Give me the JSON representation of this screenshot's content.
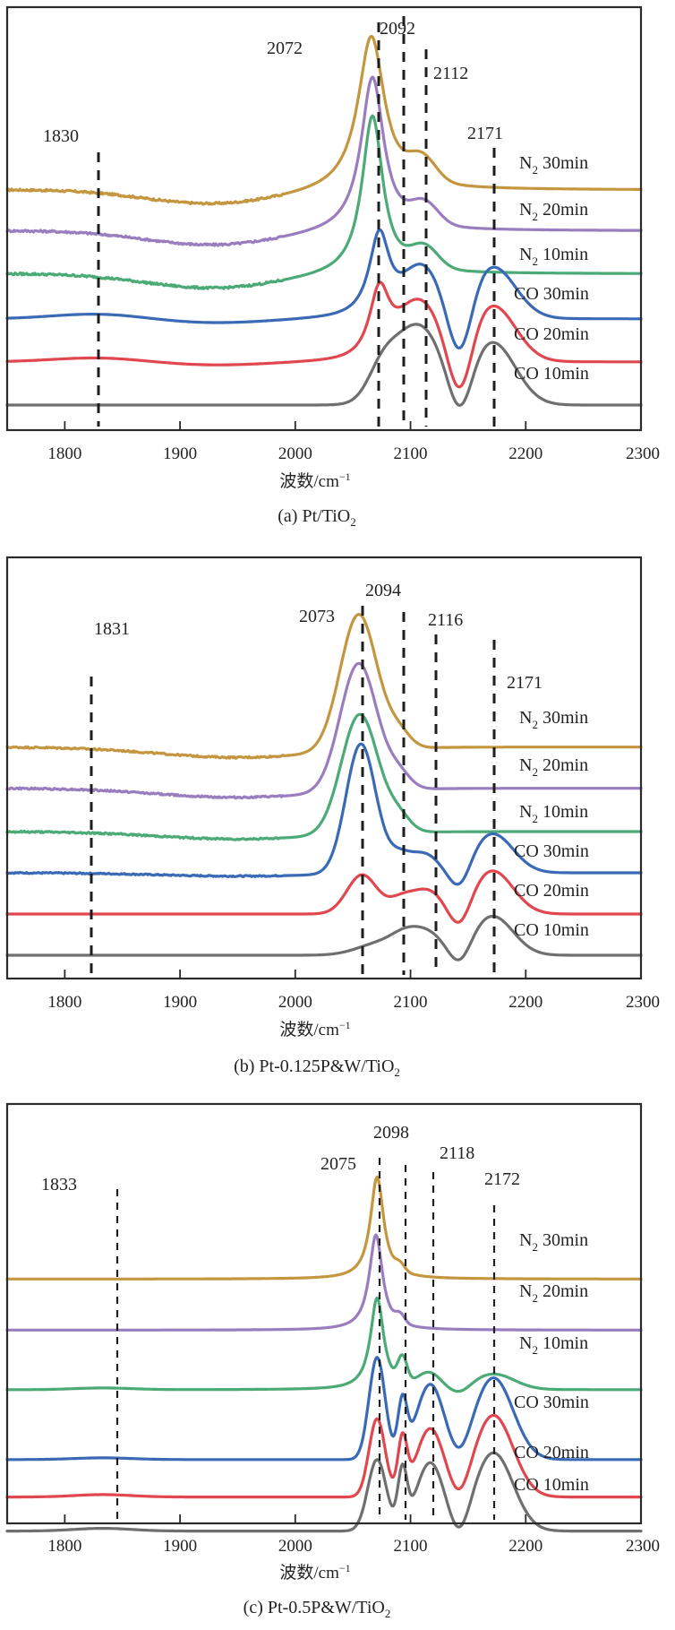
{
  "colors": {
    "N2 30min": "#C4963F",
    "N2 20min": "#9A7DBF",
    "N2 10min": "#4BAA76",
    "CO 30min": "#3A6AB5",
    "CO 20min": "#E0474F",
    "CO 10min": "#6F6F6F",
    "guide": "#1e1e1e"
  },
  "chart_data": [
    {
      "type": "line",
      "panel": "a",
      "title": "",
      "caption": "(a) Pt/TiO",
      "caption_sub": "2",
      "xlabel": "波数/cm",
      "xlabel_sup": "−1",
      "ylabel": "",
      "xlim": [
        1750,
        2300
      ],
      "x_ticks": [
        1800,
        1900,
        2000,
        2100,
        2200,
        2300
      ],
      "x_tick_labels": [
        "1800",
        "1900",
        "2000",
        "2100",
        "2200",
        "2300"
      ],
      "reference_lines": [
        {
          "x": 1830,
          "label": "1830"
        },
        {
          "x": 2072,
          "label": "2072"
        },
        {
          "x": 2092,
          "label": "2092"
        },
        {
          "x": 2112,
          "label": "2112"
        },
        {
          "x": 2171,
          "label": "2171"
        }
      ],
      "series": [
        {
          "name": "N2 30min",
          "label_main": "N",
          "label_sub": "2",
          "label_rest": " 30min",
          "offset": 5.0,
          "components": [
            [
              2066,
              3.6,
              14,
              "lorentz"
            ],
            [
              2110,
              0.55,
              12,
              "gauss"
            ],
            [
              1930,
              -0.35,
              60,
              "gauss"
            ]
          ],
          "noise": 0.06
        },
        {
          "name": "N2 20min",
          "label_main": "N",
          "label_sub": "2",
          "label_rest": " 20min",
          "offset": 4.05,
          "components": [
            [
              2067,
              3.6,
              12,
              "lorentz"
            ],
            [
              2112,
              0.5,
              12,
              "gauss"
            ],
            [
              1930,
              -0.35,
              60,
              "gauss"
            ]
          ],
          "noise": 0.06
        },
        {
          "name": "N2 10min",
          "label_main": "N",
          "label_sub": "2",
          "label_rest": " 10min",
          "offset": 3.05,
          "components": [
            [
              2067,
              3.7,
              11,
              "lorentz"
            ],
            [
              2112,
              0.5,
              12,
              "gauss"
            ],
            [
              1930,
              -0.35,
              60,
              "gauss"
            ]
          ],
          "noise": 0.06
        },
        {
          "name": "CO 30min",
          "label_main": "CO 30min",
          "label_sub": "",
          "label_rest": "",
          "offset": 2.0,
          "components": [
            [
              2073,
              2.0,
              11,
              "lorentz"
            ],
            [
              2110,
              1.1,
              16,
              "gauss"
            ],
            [
              2143,
              -1.3,
              10,
              "gauss"
            ],
            [
              2171,
              1.2,
              20,
              "gauss"
            ],
            [
              1830,
              0.12,
              40,
              "gauss"
            ],
            [
              1930,
              -0.1,
              50,
              "gauss"
            ]
          ],
          "noise": 0.0
        },
        {
          "name": "CO 20min",
          "label_main": "CO 20min",
          "label_sub": "",
          "label_rest": "",
          "offset": 1.0,
          "components": [
            [
              2073,
              1.65,
              11,
              "lorentz"
            ],
            [
              2108,
              1.3,
              18,
              "gauss"
            ],
            [
              2143,
              -1.3,
              10,
              "gauss"
            ],
            [
              2171,
              1.3,
              20,
              "gauss"
            ],
            [
              1830,
              0.1,
              40,
              "gauss"
            ],
            [
              1930,
              -0.08,
              50,
              "gauss"
            ]
          ],
          "noise": 0.0
        },
        {
          "name": "CO 10min",
          "label_main": "CO 10min",
          "label_sub": "",
          "label_rest": "",
          "offset": 0.0,
          "components": [
            [
              2075,
              0.55,
              12,
              "gauss"
            ],
            [
              2106,
              1.85,
              22,
              "gauss"
            ],
            [
              2143,
              -1.0,
              10,
              "gauss"
            ],
            [
              2171,
              1.45,
              20,
              "gauss"
            ]
          ],
          "noise": 0.0
        }
      ]
    },
    {
      "type": "line",
      "panel": "b",
      "title": "",
      "caption": "(b) Pt-0.125P&W/TiO",
      "caption_sub": "2",
      "xlabel": "波数/cm",
      "xlabel_sup": "−1",
      "ylabel": "",
      "xlim": [
        1750,
        2300
      ],
      "x_ticks": [
        1800,
        1900,
        2000,
        2100,
        2200,
        2300
      ],
      "x_tick_labels": [
        "1800",
        "1900",
        "2000",
        "2100",
        "2200",
        "2300"
      ],
      "reference_lines": [
        {
          "x": 1831,
          "label": "1831"
        },
        {
          "x": 2073,
          "label": "2073"
        },
        {
          "x": 2094,
          "label": "2094"
        },
        {
          "x": 2116,
          "label": "2116"
        },
        {
          "x": 2171,
          "label": "2171"
        }
      ],
      "series": [
        {
          "name": "N2 30min",
          "label_main": "N",
          "label_sub": "2",
          "label_rest": " 30min",
          "offset": 5.05,
          "components": [
            [
              2055,
              3.3,
              16,
              "gauss"
            ],
            [
              2090,
              0.35,
              10,
              "gauss"
            ],
            [
              1950,
              -0.25,
              70,
              "gauss"
            ]
          ],
          "noise": 0.05
        },
        {
          "name": "N2 20min",
          "label_main": "N",
          "label_sub": "2",
          "label_rest": " 20min",
          "offset": 4.05,
          "components": [
            [
              2055,
              3.1,
              16,
              "gauss"
            ],
            [
              2090,
              0.35,
              10,
              "gauss"
            ],
            [
              1950,
              -0.22,
              70,
              "gauss"
            ]
          ],
          "noise": 0.05
        },
        {
          "name": "N2 10min",
          "label_main": "N",
          "label_sub": "2",
          "label_rest": " 10min",
          "offset": 3.0,
          "components": [
            [
              2056,
              2.9,
              16,
              "gauss"
            ],
            [
              2090,
              0.35,
              10,
              "gauss"
            ],
            [
              1950,
              -0.18,
              70,
              "gauss"
            ]
          ],
          "noise": 0.05
        },
        {
          "name": "CO 30min",
          "label_main": "CO 30min",
          "label_sub": "",
          "label_rest": "",
          "offset": 2.0,
          "components": [
            [
              2057,
              3.15,
              13,
              "gauss"
            ],
            [
              2090,
              0.4,
              10,
              "gauss"
            ],
            [
              2112,
              0.45,
              12,
              "gauss"
            ],
            [
              2143,
              -0.55,
              9,
              "gauss"
            ],
            [
              2171,
              0.95,
              18,
              "gauss"
            ],
            [
              1950,
              -0.08,
              70,
              "gauss"
            ]
          ],
          "noise": 0.04
        },
        {
          "name": "CO 20min",
          "label_main": "CO 20min",
          "label_sub": "",
          "label_rest": "",
          "offset": 1.0,
          "components": [
            [
              2058,
              0.95,
              13,
              "gauss"
            ],
            [
              2092,
              0.35,
              11,
              "gauss"
            ],
            [
              2115,
              0.55,
              13,
              "gauss"
            ],
            [
              2143,
              -0.55,
              9,
              "gauss"
            ],
            [
              2171,
              1.05,
              18,
              "gauss"
            ]
          ],
          "noise": 0.0
        },
        {
          "name": "CO 10min",
          "label_main": "CO 10min",
          "label_sub": "",
          "label_rest": "",
          "offset": 0.0,
          "components": [
            [
              2075,
              0.3,
              20,
              "gauss"
            ],
            [
              2115,
              0.5,
              14,
              "gauss"
            ],
            [
              2095,
              0.3,
              12,
              "gauss"
            ],
            [
              2143,
              -0.45,
              9,
              "gauss"
            ],
            [
              2171,
              0.95,
              18,
              "gauss"
            ]
          ],
          "noise": 0.0
        }
      ]
    },
    {
      "type": "line",
      "panel": "c",
      "title": "",
      "caption": "(c) Pt-0.5P&W/TiO",
      "caption_sub": "2",
      "xlabel": "波数/cm",
      "xlabel_sup": "−1",
      "ylabel": "",
      "xlim": [
        1750,
        2300
      ],
      "x_ticks": [
        1800,
        1900,
        2000,
        2100,
        2200,
        2300
      ],
      "x_tick_labels": [
        "1800",
        "1900",
        "2000",
        "2100",
        "2200",
        "2300"
      ],
      "reference_lines": [
        {
          "x": 1833,
          "label": "1833"
        },
        {
          "x": 2075,
          "label": "2075"
        },
        {
          "x": 2098,
          "label": "2098"
        },
        {
          "x": 2118,
          "label": "2118"
        },
        {
          "x": 2172,
          "label": "2172"
        }
      ],
      "series": [
        {
          "name": "N2 30min",
          "label_main": "N",
          "label_sub": "2",
          "label_rest": " 30min",
          "offset": 6.7,
          "components": [
            [
              2071,
              3.0,
              7,
              "lorentz"
            ],
            [
              2091,
              0.2,
              4,
              "gauss"
            ]
          ],
          "noise": 0.0
        },
        {
          "name": "N2 20min",
          "label_main": "N",
          "label_sub": "2",
          "label_rest": " 20min",
          "offset": 5.2,
          "components": [
            [
              2070,
              2.8,
              7,
              "lorentz"
            ],
            [
              2091,
              0.25,
              4,
              "gauss"
            ]
          ],
          "noise": 0.0
        },
        {
          "name": "N2 10min",
          "label_main": "N",
          "label_sub": "2",
          "label_rest": " 10min",
          "offset": 3.45,
          "components": [
            [
              2071,
              2.7,
              7,
              "lorentz"
            ],
            [
              2093,
              0.75,
              4,
              "gauss"
            ],
            [
              2116,
              0.45,
              10,
              "gauss"
            ],
            [
              2143,
              -0.2,
              9,
              "gauss"
            ],
            [
              2172,
              0.45,
              18,
              "gauss"
            ],
            [
              1833,
              0.05,
              25,
              "gauss"
            ]
          ],
          "noise": 0.0
        },
        {
          "name": "CO 30min",
          "label_main": "CO 30min",
          "label_sub": "",
          "label_rest": "",
          "offset": 1.4,
          "components": [
            [
              2071,
              3.0,
              7,
              "gauss"
            ],
            [
              2093,
              1.6,
              4,
              "gauss"
            ],
            [
              2117,
              2.2,
              12,
              "gauss"
            ],
            [
              2143,
              -0.4,
              8,
              "gauss"
            ],
            [
              2172,
              2.4,
              17,
              "gauss"
            ],
            [
              1833,
              0.05,
              25,
              "gauss"
            ]
          ],
          "noise": 0.0
        },
        {
          "name": "CO 20min",
          "label_main": "CO 20min",
          "label_sub": "",
          "label_rest": "",
          "offset": 0.3,
          "components": [
            [
              2071,
              2.3,
              7,
              "gauss"
            ],
            [
              2093,
              1.6,
              4,
              "gauss"
            ],
            [
              2117,
              2.0,
              12,
              "gauss"
            ],
            [
              2143,
              -0.5,
              8,
              "gauss"
            ],
            [
              2172,
              2.4,
              17,
              "gauss"
            ],
            [
              1833,
              0.07,
              25,
              "gauss"
            ]
          ],
          "noise": 0.0
        },
        {
          "name": "CO 10min",
          "label_main": "CO 10min",
          "label_sub": "",
          "label_rest": "",
          "offset": -0.7,
          "components": [
            [
              2071,
              2.1,
              8,
              "gauss"
            ],
            [
              2093,
              1.65,
              4,
              "gauss"
            ],
            [
              2117,
              2.0,
              12,
              "gauss"
            ],
            [
              2143,
              -0.6,
              8,
              "gauss"
            ],
            [
              2172,
              2.3,
              17,
              "gauss"
            ],
            [
              1833,
              0.08,
              25,
              "gauss"
            ]
          ],
          "noise": 0.0
        }
      ]
    }
  ]
}
